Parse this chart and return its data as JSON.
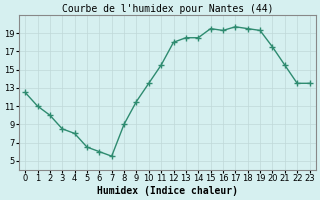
{
  "x": [
    0,
    1,
    2,
    3,
    4,
    5,
    6,
    7,
    8,
    9,
    10,
    11,
    12,
    13,
    14,
    15,
    16,
    17,
    18,
    19,
    20,
    21,
    22,
    23
  ],
  "y": [
    12.5,
    11.0,
    10.0,
    8.5,
    8.0,
    6.5,
    6.0,
    5.5,
    9.0,
    11.5,
    13.5,
    15.5,
    18.0,
    18.5,
    18.5,
    19.5,
    19.3,
    19.7,
    19.5,
    19.3,
    17.5,
    15.5,
    13.5,
    13.5
  ],
  "title": "Courbe de l'humidex pour Nantes (44)",
  "xlabel": "Humidex (Indice chaleur)",
  "ylabel": "",
  "xlim": [
    -0.5,
    23.5
  ],
  "ylim": [
    4,
    21
  ],
  "yticks": [
    5,
    7,
    9,
    11,
    13,
    15,
    17,
    19
  ],
  "xticks": [
    0,
    1,
    2,
    3,
    4,
    5,
    6,
    7,
    8,
    9,
    10,
    11,
    12,
    13,
    14,
    15,
    16,
    17,
    18,
    19,
    20,
    21,
    22,
    23
  ],
  "line_color": "#2e8b70",
  "marker_color": "#2e8b70",
  "bg_color": "#d6f0f0",
  "grid_color": "#c0d8d8",
  "title_fontsize": 7,
  "label_fontsize": 7,
  "tick_fontsize": 6
}
